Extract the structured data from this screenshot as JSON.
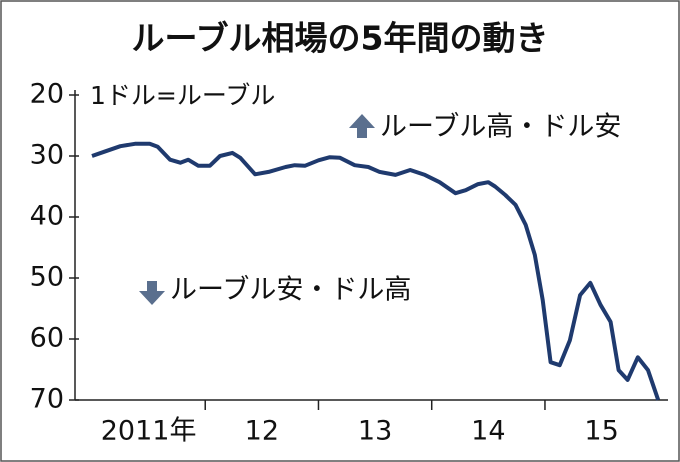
{
  "chart_data": {
    "type": "line",
    "title": "ルーブル相場の5年間の動き",
    "y_label": "1ドル=ルーブル",
    "annotations": [
      "ルーブル高・ドル安",
      "ルーブル安・ドル高"
    ],
    "invert_y": true,
    "ylim": [
      20,
      70
    ],
    "yticks": [
      20,
      30,
      40,
      50,
      60,
      70
    ],
    "xlim": [
      2010.85,
      2016.06
    ],
    "xticks": [
      {
        "value": 2011.5,
        "label": "2011年"
      },
      {
        "value": 2012.5,
        "label": "12"
      },
      {
        "value": 2013.5,
        "label": "13"
      },
      {
        "value": 2014.5,
        "label": "14"
      },
      {
        "value": 2015.5,
        "label": "15"
      }
    ],
    "x_tick_marks": [
      2012,
      2013,
      2014,
      2015
    ],
    "series": [
      {
        "color": "#1f3a6e",
        "x": [
          2011.0,
          2011.11,
          2011.25,
          2011.38,
          2011.51,
          2011.58,
          2011.69,
          2011.78,
          2011.85,
          2011.94,
          2012.04,
          2012.13,
          2012.24,
          2012.31,
          2012.44,
          2012.56,
          2012.71,
          2012.79,
          2012.88,
          2013.0,
          2013.1,
          2013.19,
          2013.32,
          2013.44,
          2013.54,
          2013.68,
          2013.81,
          2013.94,
          2014.07,
          2014.21,
          2014.3,
          2014.41,
          2014.5,
          2014.56,
          2014.65,
          2014.74,
          2014.83,
          2014.91,
          2014.98,
          2015.05,
          2015.13,
          2015.22,
          2015.31,
          2015.4,
          2015.49,
          2015.58,
          2015.65,
          2015.73,
          2015.82,
          2015.91,
          2016.0
        ],
        "values": [
          30,
          29.3,
          28.4,
          28,
          28,
          28.5,
          30.6,
          31.1,
          30.6,
          31.6,
          31.6,
          30,
          29.5,
          30.3,
          33,
          32.6,
          31.8,
          31.5,
          31.6,
          30.7,
          30.2,
          30.3,
          31.5,
          31.8,
          32.6,
          33.1,
          32.3,
          33.1,
          34.3,
          36.1,
          35.6,
          34.6,
          34.3,
          35,
          36.4,
          38,
          41.3,
          46.2,
          53.6,
          63.8,
          64.3,
          60.2,
          52.8,
          50.8,
          54.4,
          57.2,
          65.1,
          66.7,
          63,
          65.1,
          70
        ]
      }
    ]
  }
}
